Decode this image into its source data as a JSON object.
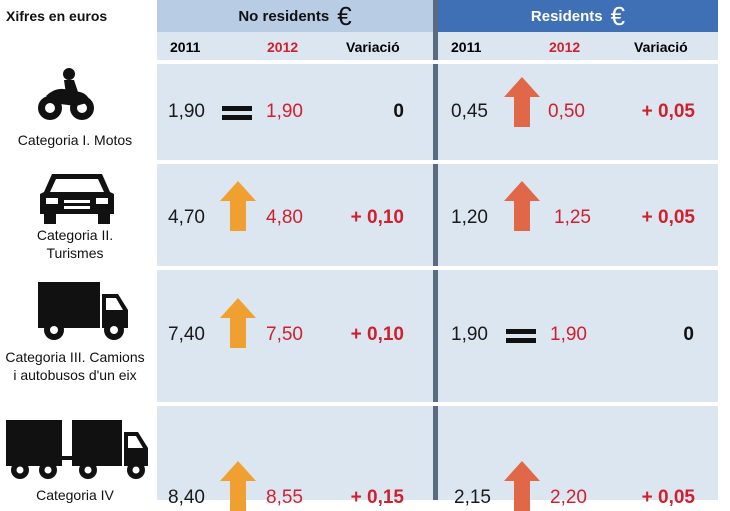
{
  "header": {
    "units_label": "Xifres en euros",
    "non_residents": "No residents",
    "residents": "Residents",
    "euro_symbol": "€"
  },
  "columns": {
    "year1": "2011",
    "year2": "2012",
    "variation": "Variació"
  },
  "colors": {
    "column_bg": "#dce6f1",
    "header_nonres": "#b8cce4",
    "header_res": "#3f6fb5",
    "arrow_orange": "#f0a030",
    "arrow_red": "#e06848",
    "accent_red": "#d0202e"
  },
  "rows": [
    {
      "category": "Categoria I. Motos",
      "icon": "motorcycle-icon",
      "non_res": {
        "y2011": "1,90",
        "trend": "equal",
        "y2012": "1,90",
        "variation": "0"
      },
      "res": {
        "y2011": "0,45",
        "trend": "up",
        "y2012": "0,50",
        "variation": "+ 0,05"
      }
    },
    {
      "category": "Categoria II. Turismes",
      "icon": "car-icon",
      "non_res": {
        "y2011": "4,70",
        "trend": "up",
        "y2012": "4,80",
        "variation": "+ 0,10"
      },
      "res": {
        "y2011": "1,20",
        "trend": "up",
        "y2012": "1,25",
        "variation": "+ 0,05"
      }
    },
    {
      "category": "Categoria III. Camions i autobusos d'un eix",
      "icon": "truck-icon",
      "non_res": {
        "y2011": "7,40",
        "trend": "up",
        "y2012": "7,50",
        "variation": "+ 0,10"
      },
      "res": {
        "y2011": "1,90",
        "trend": "equal",
        "y2012": "1,90",
        "variation": "0"
      }
    },
    {
      "category": "Categoria IV",
      "icon": "truck-trailer-icon",
      "non_res": {
        "y2011": "8,40",
        "trend": "up",
        "y2012": "8,55",
        "variation": "+ 0,15"
      },
      "res": {
        "y2011": "2,15",
        "trend": "up",
        "y2012": "2,20",
        "variation": "+ 0,05"
      }
    }
  ]
}
